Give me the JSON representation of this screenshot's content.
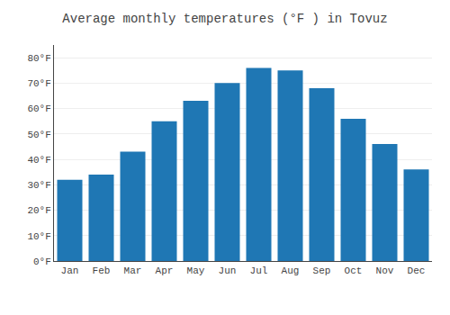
{
  "chart_data": {
    "type": "bar",
    "title": "Average monthly temperatures (°F ) in Tovuz",
    "categories": [
      "Jan",
      "Feb",
      "Mar",
      "Apr",
      "May",
      "Jun",
      "Jul",
      "Aug",
      "Sep",
      "Oct",
      "Nov",
      "Dec"
    ],
    "values": [
      32,
      34,
      43,
      55,
      63,
      70,
      76,
      75,
      68,
      56,
      46,
      36
    ],
    "ylim": [
      0,
      85
    ],
    "yticks": [
      {
        "value": 0,
        "label": "0°F"
      },
      {
        "value": 10,
        "label": "10°F"
      },
      {
        "value": 20,
        "label": "20°F"
      },
      {
        "value": 30,
        "label": "30°F"
      },
      {
        "value": 40,
        "label": "40°F"
      },
      {
        "value": 50,
        "label": "50°F"
      },
      {
        "value": 60,
        "label": "60°F"
      },
      {
        "value": 70,
        "label": "70°F"
      },
      {
        "value": 80,
        "label": "80°F"
      }
    ],
    "grid": true
  }
}
